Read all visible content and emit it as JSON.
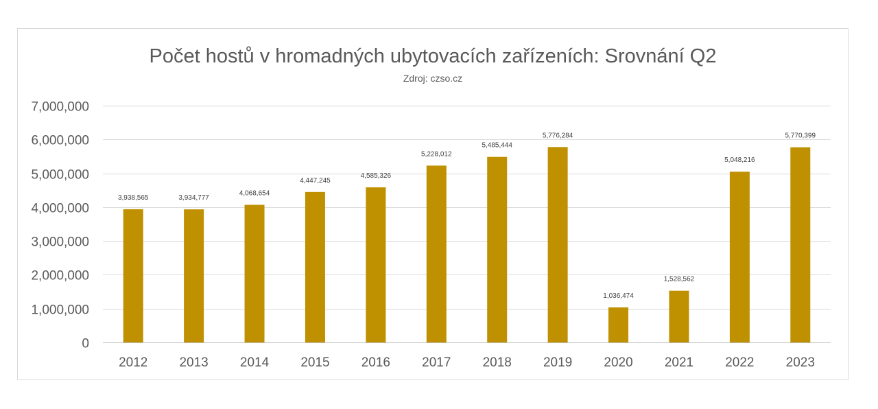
{
  "chart_data": {
    "type": "bar",
    "title": "Počet hostů v hromadných ubytovacích zařízeních: Srovnání Q2",
    "subtitle": "Zdroj: czso.cz",
    "xlabel": "",
    "ylabel": "",
    "categories": [
      "2012",
      "2013",
      "2014",
      "2015",
      "2016",
      "2017",
      "2018",
      "2019",
      "2020",
      "2021",
      "2022",
      "2023"
    ],
    "values": [
      3938565,
      3934777,
      4068654,
      4447245,
      4585326,
      5228012,
      5485444,
      5776284,
      1036474,
      1528562,
      5048216,
      5770399
    ],
    "data_labels": [
      "3,938,565",
      "3,934,777",
      "4,068,654",
      "4,447,245",
      "4,585,326",
      "5,228,012",
      "5,485,444",
      "5,776,284",
      "1,036,474",
      "1,528,562",
      "5,048,216",
      "5,770,399"
    ],
    "ylim": [
      0,
      7000000
    ],
    "yticks": [
      0,
      1000000,
      2000000,
      3000000,
      4000000,
      5000000,
      6000000,
      7000000
    ],
    "ytick_labels": [
      "0",
      "1,000,000",
      "2,000,000",
      "3,000,000",
      "4,000,000",
      "5,000,000",
      "6,000,000",
      "7,000,000"
    ],
    "grid": true,
    "legend": "none",
    "bar_color": "#BF9000"
  }
}
